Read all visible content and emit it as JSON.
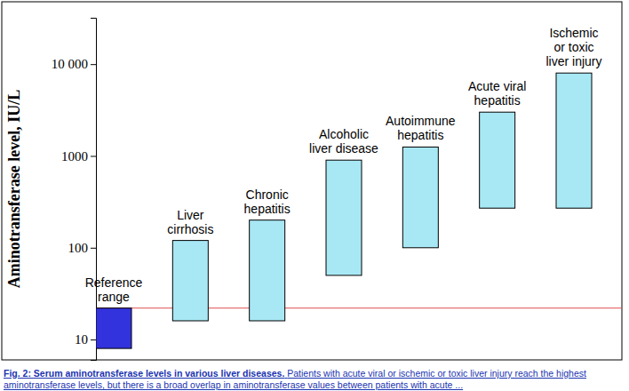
{
  "chart_data": {
    "type": "range",
    "title": "Fig. 2: Serum aminotransferase levels in various liver diseases.",
    "subtitle": "Patients with acute viral or ischemic or toxic liver injury reach the highest aminotransferase levels, but there is a broad overlap in aminotransferase values between patients with acute ...",
    "y_label": "Aminotransferase level, IU/L",
    "categories": [
      "Reference\nrange",
      "Liver\ncirrhosis",
      "Chronic\nhepatitis",
      "Alcoholic\nliver disease",
      "Autoimmune\nhepatitis",
      "Acute viral\nhepatitis",
      "Ischemic\nor toxic\nliver injury"
    ],
    "low": [
      8,
      16,
      16,
      50,
      100,
      270,
      270
    ],
    "high": [
      22,
      120,
      200,
      900,
      1250,
      3000,
      8000
    ],
    "colors": [
      "#3333dd",
      "#a8e8f5",
      "#a8e8f5",
      "#a8e8f5",
      "#a8e8f5",
      "#a8e8f5",
      "#a8e8f5"
    ],
    "reference_line": 22,
    "ylim": [
      6,
      32000
    ],
    "yticks": [
      10,
      100,
      1000,
      {
        "value": 10000,
        "label": "10 000"
      }
    ],
    "log": "y",
    "grid": false,
    "tick_labels": "y"
  }
}
